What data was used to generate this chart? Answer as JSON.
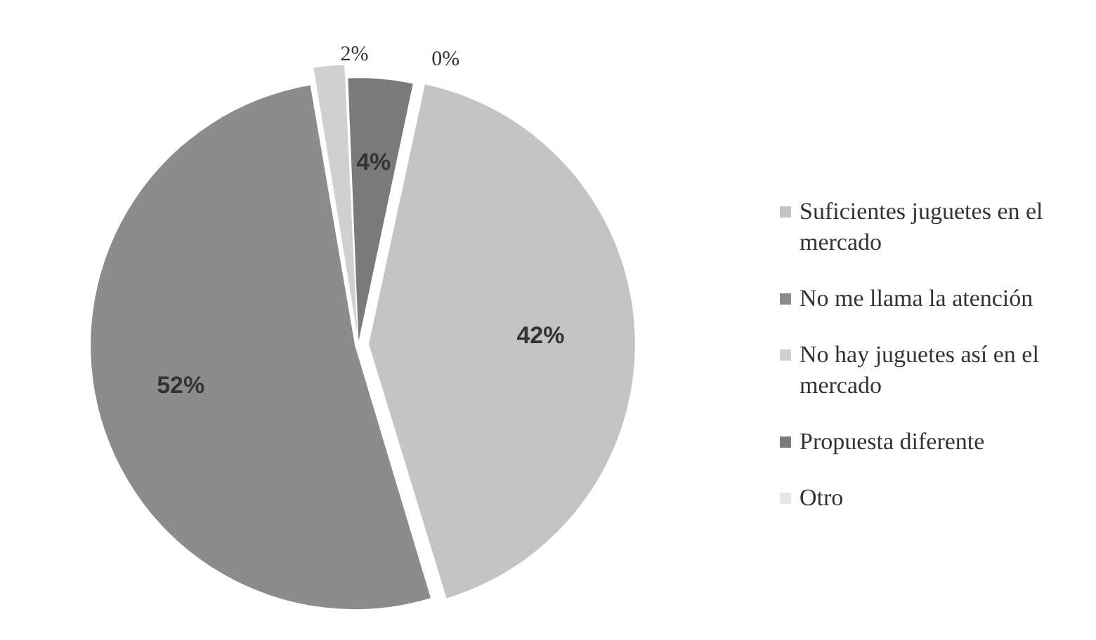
{
  "chart_data": {
    "type": "pie",
    "categories": [
      "Suficientes juguetes en el mercado",
      "No me llama la atención",
      "No hay  juguetes así en el mercado",
      "Propuesta diferente",
      "Otro"
    ],
    "values": [
      42,
      52,
      2,
      4,
      0
    ],
    "value_labels": [
      "42%",
      "52%",
      "2%",
      "4%",
      "0%"
    ],
    "colors": [
      "#c4c4c4",
      "#8c8c8c",
      "#d0d0d0",
      "#7a7a7a",
      "#e6e6e6"
    ],
    "legend": "right"
  }
}
